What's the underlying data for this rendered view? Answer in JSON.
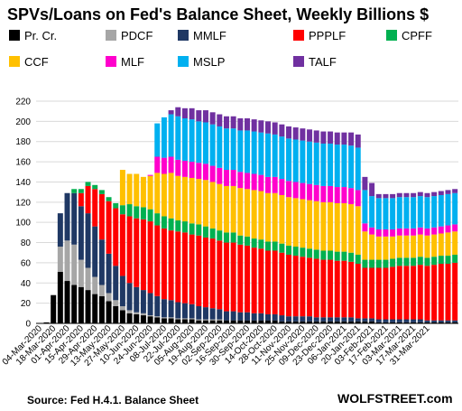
{
  "chart_data": {
    "type": "bar",
    "stacked": true,
    "title": "SPVs/Loans  on Fed's Balance Sheet, Weekly Billions $",
    "source": "Source: Fed H.4.1. Balance Sheet",
    "brand": "WOLFSTREET.com",
    "ylim": [
      0,
      220
    ],
    "yticks": [
      0,
      20,
      40,
      60,
      80,
      100,
      120,
      140,
      160,
      180,
      200,
      220
    ],
    "grid": true,
    "legend_position": "top",
    "x_tick_labels": [
      "04-Mar-2020",
      "18-Mar-2020",
      "01-Apr-2020",
      "15-Apr-2020",
      "29-Apr-2020",
      "13-May-2020",
      "27-May-2020",
      "10-Jun-2020",
      "24-Jun-2020",
      "08-Jul-2020",
      "22-Jul-2020",
      "05-Aug-2020",
      "19-Aug-2020",
      "02-Sep-2020",
      "16-Sep-2020",
      "30-Sep-2020",
      "14-Oct-2020",
      "28-Oct-2020",
      "11-Nov-2020",
      "25-Nov-2020",
      "09-Dec-2020",
      "23-Dec-2020",
      "06-Jan-2021",
      "20-Jan-2021",
      "03-Feb-2021",
      "17-Feb-2021",
      "03-Mar-2021",
      "17-Mar-2021",
      "31-Mar-2021"
    ],
    "series": [
      {
        "name": "Pr. Cr.",
        "color": "#000000",
        "values": [
          0,
          1,
          28,
          51,
          42,
          38,
          36,
          33,
          29,
          27,
          22,
          17,
          13,
          10,
          9,
          8,
          7,
          6,
          5,
          5,
          4,
          4,
          4,
          3,
          3,
          3,
          3,
          3,
          3,
          3,
          3,
          3,
          3,
          3,
          3,
          2,
          2,
          2,
          2,
          2,
          2,
          2,
          2,
          2,
          2,
          2,
          2,
          2,
          2,
          1,
          1,
          1,
          1,
          1,
          1,
          1,
          1,
          1,
          1,
          1,
          1
        ]
      },
      {
        "name": "PDCF",
        "color": "#a6a6a6",
        "values": [
          0,
          0,
          0,
          25,
          40,
          40,
          27,
          22,
          17,
          11,
          8,
          6,
          4,
          3,
          2,
          2,
          1,
          1,
          1,
          1,
          1,
          1,
          1,
          1,
          1,
          1,
          1,
          0,
          0,
          0,
          0,
          0,
          0,
          0,
          0,
          0,
          0,
          0,
          0,
          0,
          0,
          0,
          0,
          0,
          0,
          0,
          0,
          0,
          0,
          0,
          0,
          0,
          0,
          0,
          0,
          0,
          0,
          0,
          0,
          0,
          0
        ]
      },
      {
        "name": "MMLF",
        "color": "#1f3864",
        "values": [
          0,
          0,
          0,
          33,
          47,
          51,
          53,
          54,
          50,
          45,
          39,
          34,
          30,
          27,
          25,
          23,
          22,
          20,
          18,
          17,
          16,
          15,
          14,
          13,
          12,
          11,
          10,
          9,
          9,
          8,
          8,
          7,
          7,
          6,
          6,
          6,
          5,
          5,
          5,
          5,
          4,
          4,
          4,
          4,
          4,
          4,
          3,
          3,
          3,
          3,
          3,
          3,
          3,
          3,
          3,
          3,
          2,
          2,
          2,
          2,
          2
        ]
      },
      {
        "name": "PPPLF",
        "color": "#ff0000",
        "values": [
          0,
          0,
          0,
          0,
          0,
          0,
          13,
          27,
          37,
          45,
          52,
          57,
          61,
          66,
          68,
          70,
          71,
          70,
          70,
          69,
          70,
          70,
          69,
          70,
          69,
          69,
          68,
          68,
          68,
          67,
          66,
          65,
          64,
          63,
          63,
          62,
          61,
          60,
          59,
          58,
          58,
          57,
          57,
          56,
          56,
          55,
          54,
          50,
          50,
          51,
          51,
          52,
          53,
          53,
          53,
          54,
          54,
          55,
          56,
          56,
          57
        ]
      },
      {
        "name": "CPFF",
        "color": "#00b050",
        "values": [
          0,
          0,
          0,
          0,
          0,
          4,
          4,
          4,
          4,
          4,
          4,
          5,
          9,
          12,
          12,
          12,
          12,
          12,
          12,
          12,
          11,
          11,
          11,
          11,
          11,
          10,
          10,
          10,
          10,
          9,
          9,
          9,
          9,
          9,
          9,
          9,
          9,
          9,
          9,
          9,
          9,
          9,
          9,
          9,
          9,
          9,
          9,
          8,
          8,
          8,
          8,
          8,
          8,
          8,
          8,
          8,
          8,
          8,
          8,
          8,
          8
        ]
      },
      {
        "name": "CCF",
        "color": "#ffc000",
        "values": [
          0,
          0,
          0,
          0,
          0,
          0,
          0,
          0,
          0,
          0,
          0,
          0,
          35,
          30,
          32,
          30,
          33,
          40,
          42,
          45,
          44,
          44,
          45,
          45,
          46,
          46,
          46,
          46,
          46,
          47,
          47,
          48,
          48,
          48,
          48,
          48,
          48,
          48,
          48,
          48,
          48,
          48,
          48,
          48,
          48,
          48,
          48,
          28,
          25,
          23,
          23,
          22,
          22,
          22,
          22,
          22,
          22,
          22,
          22,
          23,
          23
        ]
      },
      {
        "name": "MLF",
        "color": "#ff00cc",
        "values": [
          0,
          0,
          0,
          0,
          0,
          0,
          0,
          0,
          0,
          0,
          0,
          0,
          0,
          0,
          0,
          0,
          1,
          16,
          16,
          16,
          16,
          16,
          16,
          16,
          16,
          16,
          16,
          16,
          16,
          16,
          16,
          16,
          16,
          16,
          16,
          16,
          16,
          16,
          16,
          16,
          16,
          16,
          16,
          16,
          16,
          16,
          16,
          8,
          7,
          7,
          7,
          7,
          7,
          7,
          7,
          7,
          7,
          7,
          7,
          7,
          7
        ]
      },
      {
        "name": "MSLP",
        "color": "#00b0f0",
        "values": [
          0,
          0,
          0,
          0,
          0,
          0,
          0,
          0,
          0,
          0,
          0,
          0,
          0,
          0,
          0,
          0,
          0,
          33,
          40,
          42,
          43,
          42,
          42,
          41,
          41,
          41,
          41,
          41,
          41,
          41,
          42,
          42,
          42,
          43,
          42,
          42,
          42,
          42,
          42,
          42,
          42,
          42,
          42,
          42,
          42,
          42,
          42,
          33,
          31,
          31,
          31,
          31,
          31,
          31,
          31,
          31,
          31,
          31,
          31,
          31,
          31
        ]
      },
      {
        "name": "TALF",
        "color": "#7030a0",
        "values": [
          0,
          0,
          0,
          0,
          0,
          0,
          0,
          0,
          0,
          0,
          0,
          0,
          0,
          0,
          0,
          0,
          0,
          0,
          0,
          4,
          9,
          10,
          11,
          11,
          12,
          12,
          12,
          12,
          12,
          12,
          12,
          12,
          12,
          12,
          12,
          12,
          12,
          12,
          12,
          12,
          12,
          12,
          12,
          12,
          12,
          13,
          13,
          13,
          13,
          4,
          4,
          4,
          4,
          4,
          4,
          4,
          4,
          4,
          4,
          4,
          4
        ]
      }
    ]
  }
}
